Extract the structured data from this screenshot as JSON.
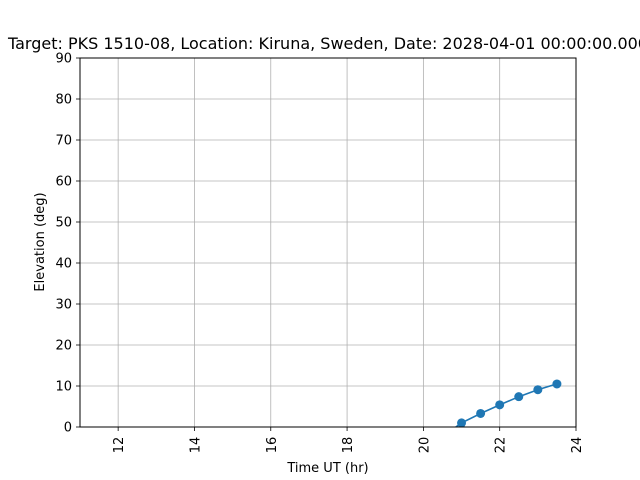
{
  "chart_data": {
    "type": "line",
    "title": "Target: PKS 1510-08,  Location: Kiruna, Sweden, Date: 2028-04-01 00:00:00.000",
    "xlabel": "Time UT (hr)",
    "ylabel": "Elevation (deg)",
    "xlim": [
      11,
      24
    ],
    "ylim": [
      0,
      90
    ],
    "xticks": [
      12,
      14,
      16,
      18,
      20,
      22,
      24
    ],
    "yticks": [
      0,
      10,
      20,
      30,
      40,
      50,
      60,
      70,
      80,
      90
    ],
    "grid": true,
    "series": [
      {
        "color": "#1f77b4",
        "x": [
          20.85,
          21.0,
          21.5,
          22.0,
          22.5,
          23.0,
          23.5
        ],
        "y": [
          0,
          1.0,
          3.3,
          5.4,
          7.4,
          9.1,
          10.5
        ],
        "markers": [
          false,
          true,
          true,
          true,
          true,
          true,
          true
        ]
      }
    ]
  }
}
